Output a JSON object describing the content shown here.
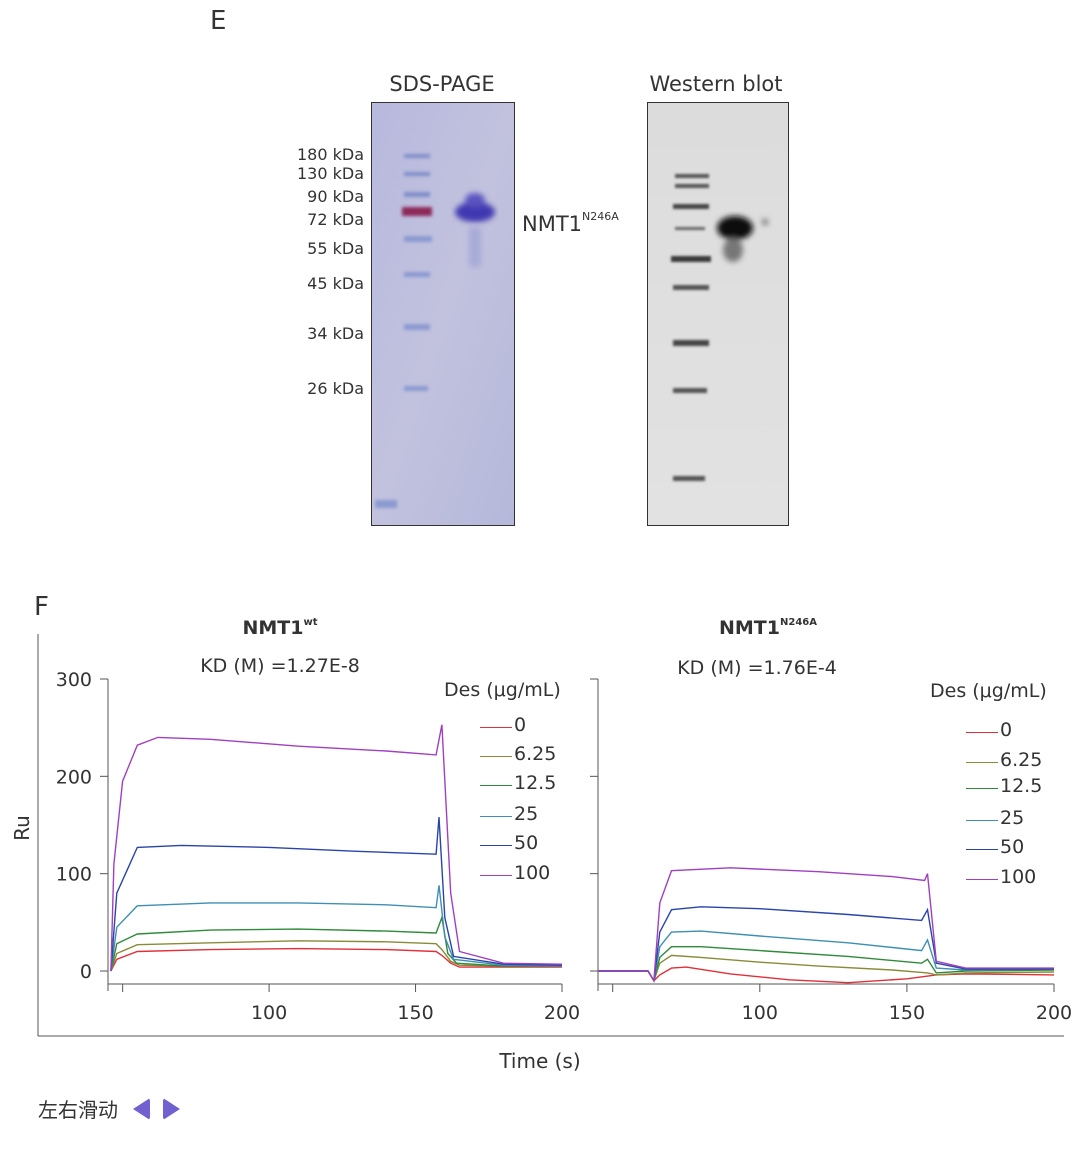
{
  "panelE": {
    "letter": "E",
    "sds_title": "SDS-PAGE",
    "wb_title": "Western blot",
    "markers": [
      "180 kDa",
      "130 kDa",
      "90 kDa",
      "72 kDa",
      "55 kDa",
      "45 kDa",
      "34 kDa",
      "26 kDa"
    ],
    "protein_main": "NMT1",
    "protein_sup": "N246A"
  },
  "panelF": {
    "letter": "F",
    "xlabel": "Time (s)",
    "ylabel": "Ru"
  },
  "chart_data": [
    {
      "type": "line",
      "title_main": "NMT1",
      "title_sup": "wt",
      "annotation": "KD (M) =1.27E-8",
      "legend_title": "Des (μg/mL)",
      "xlim": [
        45,
        200
      ],
      "ylim": [
        -15,
        310
      ],
      "x_ticks": [
        "100",
        "150",
        "200"
      ],
      "y_ticks": [
        "300",
        "200",
        "100",
        "0"
      ],
      "series": [
        {
          "name": "0",
          "color": "#e0303a",
          "points": [
            [
              46,
              0
            ],
            [
              48,
              12
            ],
            [
              55,
              20
            ],
            [
              80,
              22
            ],
            [
              110,
              23
            ],
            [
              140,
              22
            ],
            [
              157,
              20
            ],
            [
              159,
              16
            ],
            [
              162,
              8
            ],
            [
              165,
              4
            ],
            [
              180,
              4
            ],
            [
              200,
              4
            ]
          ]
        },
        {
          "name": "6.25",
          "color": "#8a8a3a",
          "points": [
            [
              46,
              0
            ],
            [
              48,
              18
            ],
            [
              55,
              27
            ],
            [
              80,
              29
            ],
            [
              110,
              31
            ],
            [
              140,
              30
            ],
            [
              157,
              28
            ],
            [
              159,
              22
            ],
            [
              162,
              10
            ],
            [
              165,
              6
            ],
            [
              180,
              5
            ],
            [
              200,
              5
            ]
          ]
        },
        {
          "name": "12.5",
          "color": "#2f8a3a",
          "points": [
            [
              46,
              0
            ],
            [
              48,
              28
            ],
            [
              55,
              38
            ],
            [
              80,
              42
            ],
            [
              110,
              43
            ],
            [
              140,
              41
            ],
            [
              157,
              39
            ],
            [
              159,
              55
            ],
            [
              161,
              18
            ],
            [
              164,
              8
            ],
            [
              180,
              5
            ],
            [
              200,
              5
            ]
          ]
        },
        {
          "name": "25",
          "color": "#3f8fb3",
          "points": [
            [
              46,
              0
            ],
            [
              48,
              45
            ],
            [
              55,
              67
            ],
            [
              80,
              70
            ],
            [
              110,
              70
            ],
            [
              140,
              68
            ],
            [
              157,
              65
            ],
            [
              158,
              88
            ],
            [
              160,
              35
            ],
            [
              163,
              12
            ],
            [
              180,
              6
            ],
            [
              200,
              5
            ]
          ]
        },
        {
          "name": "50",
          "color": "#2b44aa",
          "points": [
            [
              46,
              0
            ],
            [
              48,
              80
            ],
            [
              55,
              127
            ],
            [
              70,
              129
            ],
            [
              100,
              127
            ],
            [
              130,
              123
            ],
            [
              157,
              120
            ],
            [
              158,
              158
            ],
            [
              160,
              55
            ],
            [
              163,
              15
            ],
            [
              180,
              7
            ],
            [
              200,
              6
            ]
          ]
        },
        {
          "name": "100",
          "color": "#a040c0",
          "points": [
            [
              46,
              0
            ],
            [
              47,
              110
            ],
            [
              50,
              195
            ],
            [
              55,
              232
            ],
            [
              62,
              240
            ],
            [
              80,
              238
            ],
            [
              110,
              231
            ],
            [
              140,
              226
            ],
            [
              157,
              222
            ],
            [
              159,
              253
            ],
            [
              162,
              80
            ],
            [
              165,
              20
            ],
            [
              180,
              8
            ],
            [
              200,
              7
            ]
          ]
        }
      ]
    },
    {
      "type": "line",
      "title_main": "NMT1",
      "title_sup": "N246A",
      "annotation": "KD (M) =1.76E-4",
      "legend_title": "Des (μg/mL)",
      "xlim": [
        45,
        200
      ],
      "ylim": [
        -15,
        310
      ],
      "x_ticks": [
        "100",
        "150",
        "200"
      ],
      "y_ticks": [],
      "series": [
        {
          "name": "0",
          "color": "#e0303a",
          "points": [
            [
              45,
              0
            ],
            [
              62,
              0
            ],
            [
              64,
              -10
            ],
            [
              66,
              -4
            ],
            [
              70,
              3
            ],
            [
              75,
              4
            ],
            [
              90,
              -3
            ],
            [
              110,
              -9
            ],
            [
              130,
              -12
            ],
            [
              150,
              -8
            ],
            [
              160,
              -4
            ],
            [
              170,
              -3
            ],
            [
              200,
              -4
            ]
          ]
        },
        {
          "name": "6.25",
          "color": "#8a8a3a",
          "points": [
            [
              45,
              0
            ],
            [
              62,
              0
            ],
            [
              64,
              -10
            ],
            [
              66,
              8
            ],
            [
              70,
              16
            ],
            [
              80,
              14
            ],
            [
              100,
              9
            ],
            [
              120,
              5
            ],
            [
              145,
              1
            ],
            [
              157,
              -2
            ],
            [
              160,
              -4
            ],
            [
              170,
              -2
            ],
            [
              200,
              -1
            ]
          ]
        },
        {
          "name": "12.5",
          "color": "#2f8a3a",
          "points": [
            [
              45,
              0
            ],
            [
              62,
              0
            ],
            [
              64,
              -10
            ],
            [
              66,
              14
            ],
            [
              70,
              25
            ],
            [
              80,
              25
            ],
            [
              100,
              21
            ],
            [
              130,
              15
            ],
            [
              155,
              8
            ],
            [
              157,
              12
            ],
            [
              160,
              -2
            ],
            [
              170,
              0
            ],
            [
              200,
              1
            ]
          ]
        },
        {
          "name": "25",
          "color": "#3f8fb3",
          "points": [
            [
              45,
              0
            ],
            [
              62,
              0
            ],
            [
              64,
              -10
            ],
            [
              66,
              25
            ],
            [
              70,
              40
            ],
            [
              80,
              41
            ],
            [
              100,
              36
            ],
            [
              130,
              29
            ],
            [
              155,
              21
            ],
            [
              157,
              32
            ],
            [
              160,
              3
            ],
            [
              170,
              1
            ],
            [
              200,
              2
            ]
          ]
        },
        {
          "name": "50",
          "color": "#2b44aa",
          "points": [
            [
              45,
              0
            ],
            [
              62,
              0
            ],
            [
              64,
              -10
            ],
            [
              66,
              40
            ],
            [
              70,
              63
            ],
            [
              80,
              66
            ],
            [
              100,
              64
            ],
            [
              130,
              58
            ],
            [
              155,
              52
            ],
            [
              157,
              63
            ],
            [
              160,
              8
            ],
            [
              170,
              2
            ],
            [
              200,
              2
            ]
          ]
        },
        {
          "name": "100",
          "color": "#a040c0",
          "points": [
            [
              45,
              0
            ],
            [
              62,
              0
            ],
            [
              64,
              -10
            ],
            [
              66,
              70
            ],
            [
              70,
              103
            ],
            [
              90,
              106
            ],
            [
              120,
              102
            ],
            [
              145,
              97
            ],
            [
              156,
              93
            ],
            [
              157,
              100
            ],
            [
              160,
              10
            ],
            [
              170,
              3
            ],
            [
              200,
              3
            ]
          ]
        }
      ]
    }
  ],
  "nav": {
    "label": "左右滑动",
    "prev_icon": "triangle-left-icon",
    "next_icon": "triangle-right-icon",
    "color": "#7060d0"
  }
}
